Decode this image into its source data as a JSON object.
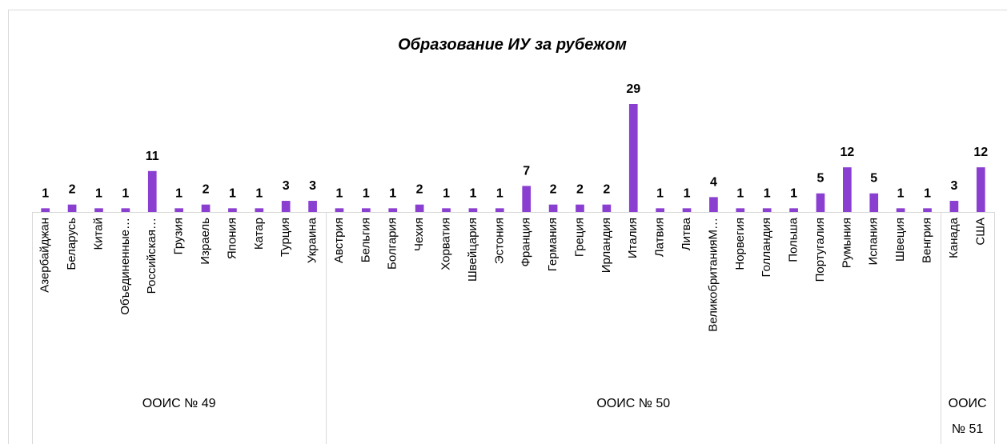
{
  "chart_data": {
    "type": "bar",
    "title": "Образование ИУ за рубежом",
    "color": "#8a3fd1",
    "groups": [
      {
        "label": "ООИС № 49",
        "categories": [
          "Азербайджан",
          "Беларусь",
          "Китай",
          "Объединенные…",
          "Российская…",
          "Грузия",
          "Израель",
          "Япония",
          "Катар",
          "Турция",
          "Украина"
        ],
        "values": [
          1,
          2,
          1,
          1,
          11,
          1,
          2,
          1,
          1,
          3,
          3
        ]
      },
      {
        "label": "ООИС № 50",
        "categories": [
          "Австрия",
          "Бельгия",
          "Болгария",
          "Чехия",
          "Хорватия",
          "Швейцария",
          "Эстония",
          "Франция",
          "Германия",
          "Греция",
          "Ирландия",
          "Италия",
          "Латвия",
          "Литва",
          "ВеликобританияМ…",
          "Норвегия",
          "Голландия",
          "Польша",
          "Португалия",
          "Румыния",
          "Испания",
          "Швеция",
          "Венгрия"
        ],
        "values": [
          1,
          1,
          1,
          2,
          1,
          1,
          1,
          7,
          2,
          2,
          2,
          29,
          1,
          1,
          4,
          1,
          1,
          1,
          5,
          12,
          5,
          1,
          1
        ]
      },
      {
        "label": "ООИС № 51",
        "categories": [
          "Канада",
          "США"
        ],
        "values": [
          3,
          12
        ]
      }
    ]
  }
}
